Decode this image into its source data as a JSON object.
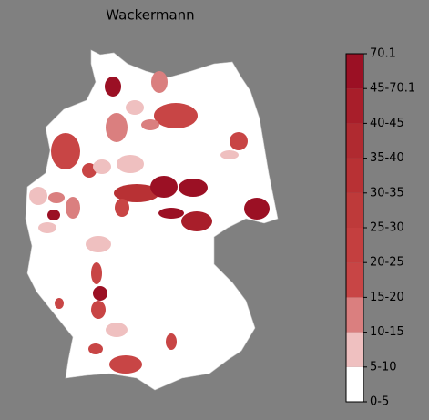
{
  "title": "Wackermann",
  "colorbar": {
    "ticks": [
      "0-5",
      "5-10",
      "10-15",
      "15-20",
      "20-25",
      "25-30",
      "30-35",
      "35-40",
      "40-45",
      "45-70.1",
      "70.1"
    ],
    "colors": [
      "#ffffff",
      "#efc0c0",
      "#da7f7f",
      "#c84545",
      "#c43f3f",
      "#be3a3a",
      "#b83134",
      "#b02a30",
      "#a81e2a",
      "#9b1024"
    ]
  }
}
